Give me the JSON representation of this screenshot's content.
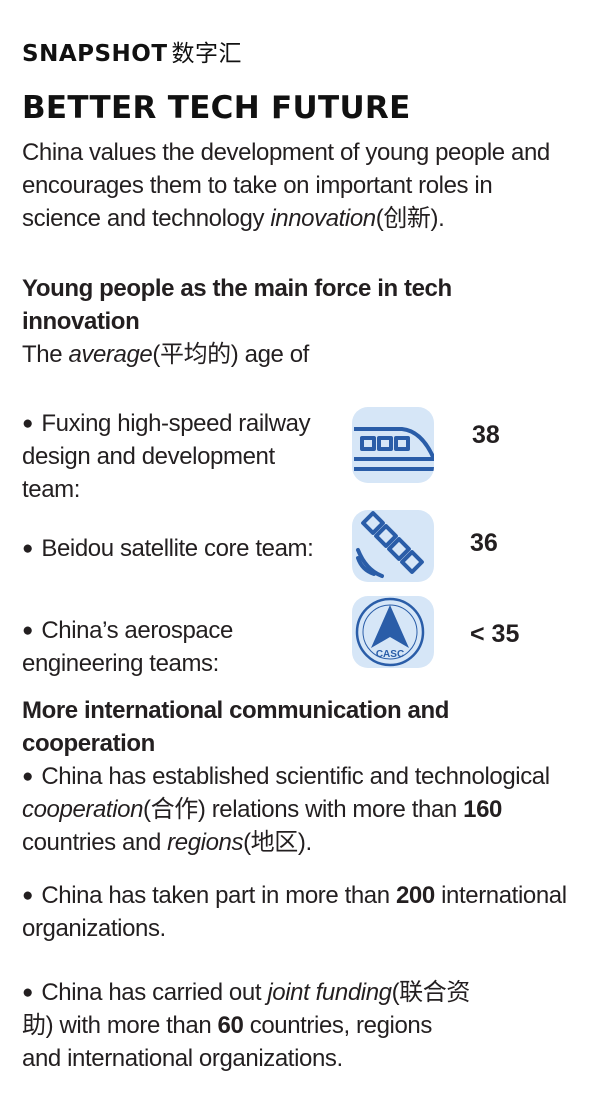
{
  "kicker": {
    "label": "SNAPSHOT",
    "cn": "数字汇"
  },
  "headline": "BETTER TECH FUTURE",
  "intro": {
    "text": "China values the development of young people and encourages them to take on important roles in science and technology ",
    "term": "innovation",
    "gloss": "(创新)."
  },
  "section1": {
    "title": "Young people as the main force in tech innovation",
    "lead_pre": "The ",
    "lead_term": "average",
    "lead_gloss": "(平均的)",
    "lead_post": " age of",
    "stats": [
      {
        "text": "Fuxing high-speed railway design and development team:",
        "value": "38",
        "icon": "train-icon"
      },
      {
        "text": "Beidou satellite core team:",
        "value": "36",
        "icon": "satellite-icon"
      },
      {
        "text": "China’s aerospace engineering teams:",
        "value": "< 35",
        "icon": "casc-logo-icon"
      }
    ],
    "casc_logo_text": "CASC"
  },
  "section2": {
    "title": "More international communication and cooperation",
    "bullet1": {
      "pre": "China has established scientific and technological ",
      "term1": "cooperation",
      "gloss1": "(合作)",
      "mid": " relations with more than ",
      "num": "160",
      "post": " countries and ",
      "term2": "regions",
      "gloss2": "(地区)."
    },
    "bullet2": {
      "pre": "China has taken part in more than ",
      "num": "200",
      "post": " international organizations."
    },
    "bullet3": {
      "pre": "China has carried out ",
      "term": "joint funding",
      "gloss": "(联合资助)",
      "mid": " with more than ",
      "num": "60",
      "post": " countries, regions and international organizations."
    }
  },
  "colors": {
    "icon_bg": "#d6e6f7",
    "icon_fg": "#2a5da8",
    "text": "#231f20"
  }
}
